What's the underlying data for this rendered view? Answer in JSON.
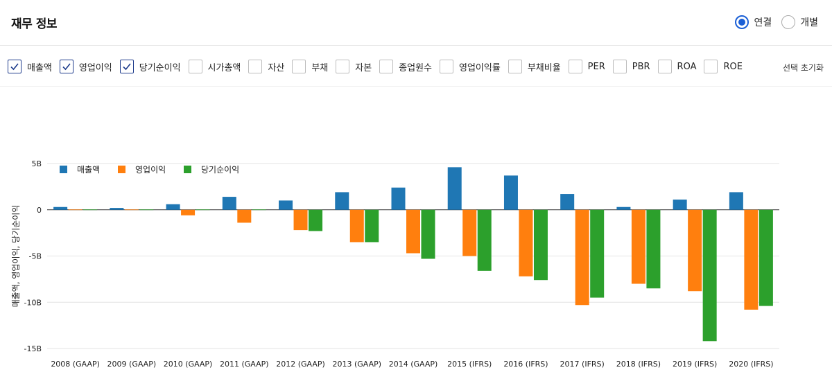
{
  "header": {
    "title": "재무 정보",
    "radio_options": [
      {
        "label": "연결",
        "selected": true
      },
      {
        "label": "개별",
        "selected": false
      }
    ]
  },
  "filters": {
    "items": [
      {
        "label": "매출액",
        "checked": true
      },
      {
        "label": "영업이익",
        "checked": true
      },
      {
        "label": "당기순이익",
        "checked": true
      },
      {
        "label": "시가총액",
        "checked": false
      },
      {
        "label": "자산",
        "checked": false
      },
      {
        "label": "부채",
        "checked": false
      },
      {
        "label": "자본",
        "checked": false
      },
      {
        "label": "종업원수",
        "checked": false
      },
      {
        "label": "영업이익률",
        "checked": false
      },
      {
        "label": "부채비율",
        "checked": false
      },
      {
        "label": "PER",
        "checked": false
      },
      {
        "label": "PBR",
        "checked": false
      },
      {
        "label": "ROA",
        "checked": false
      },
      {
        "label": "ROE",
        "checked": false
      }
    ],
    "reset_label": "선택 초기화"
  },
  "colors": {
    "accent": "#1a5fd6",
    "checkbox_checked": "#1e3c8c"
  },
  "chart_data": {
    "type": "bar",
    "categories": [
      "2008 (GAAP)",
      "2009 (GAAP)",
      "2010 (GAAP)",
      "2011 (GAAP)",
      "2012 (GAAP)",
      "2013 (GAAP)",
      "2014 (GAAP)",
      "2015 (IFRS)",
      "2016 (IFRS)",
      "2017 (IFRS)",
      "2018 (IFRS)",
      "2019 (IFRS)",
      "2020 (IFRS)"
    ],
    "series": [
      {
        "name": "매출액",
        "color": "#1f77b4",
        "values": [
          0.3,
          0.2,
          0.6,
          1.4,
          1.0,
          1.9,
          2.4,
          4.6,
          3.7,
          1.7,
          0.3,
          1.1,
          1.9
        ]
      },
      {
        "name": "영업이익",
        "color": "#ff7f0e",
        "values": [
          0.0,
          0.0,
          -0.6,
          -1.4,
          -2.2,
          -3.5,
          -4.7,
          -5.0,
          -7.2,
          -10.3,
          -8.0,
          -8.8,
          -10.8
        ]
      },
      {
        "name": "당기순이익",
        "color": "#2ca02c",
        "values": [
          0.0,
          0.0,
          0.0,
          0.0,
          -2.3,
          -3.5,
          -5.3,
          -6.6,
          -7.6,
          -9.5,
          -8.5,
          -14.2,
          -10.4
        ]
      }
    ],
    "ylabel": "매출액, 영업이익, 당기순이익",
    "xlabel": "",
    "yticks": [
      {
        "value": 5,
        "label": "5B"
      },
      {
        "value": 0,
        "label": "0"
      },
      {
        "value": -5,
        "label": "-5B"
      },
      {
        "value": -10,
        "label": "-10B"
      },
      {
        "value": -15,
        "label": "-15B"
      }
    ],
    "ylim": [
      -15,
      5
    ],
    "grid": true,
    "legend_position": "top-left"
  }
}
